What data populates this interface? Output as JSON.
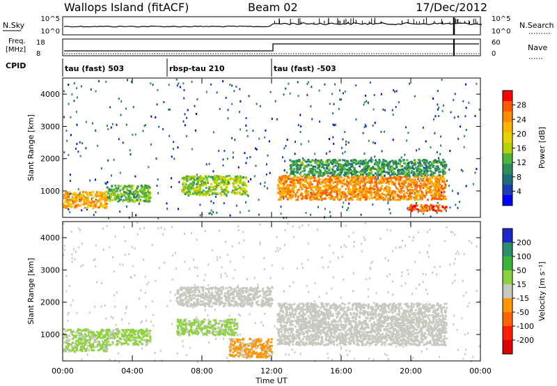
{
  "header": {
    "station": "Wallops Island (fitACF)",
    "beam": "Beam 02",
    "date": "17/Dec/2012"
  },
  "top_panels": {
    "nsky_label": "N.Sky",
    "nsky_ticks": [
      "10^5",
      "10^0"
    ],
    "nsearch_label": "N.Search",
    "nsearch_ticks": [
      "10^5",
      "10^0"
    ],
    "freq_label_1": "Freq.",
    "freq_label_2": "[MHz]",
    "freq_ticks": [
      "18",
      "8"
    ],
    "nave_label": "Nave",
    "nave_ticks": [
      "60",
      "0"
    ],
    "cpid_label": "CPID",
    "cpid_segments": [
      {
        "label": "tau (fast) 503",
        "start": 0,
        "end": 6
      },
      {
        "label": "rbsp-tau 210",
        "start": 6,
        "end": 12
      },
      {
        "label": "tau (fast) -503",
        "start": 12,
        "end": 24
      }
    ]
  },
  "power_colorbar": {
    "title": "Power [dB]",
    "ticks": [
      "28",
      "24",
      "20",
      "16",
      "12",
      "8",
      "4"
    ],
    "colors": [
      "#ff0000",
      "#ff5a00",
      "#ff8c00",
      "#ffb400",
      "#e6d200",
      "#b4d200",
      "#50b43c",
      "#2d8c5a",
      "#1e6e78",
      "#1e3cb4",
      "#0000ff"
    ]
  },
  "velocity_colorbar": {
    "title": "Velocity [m s⁻¹]",
    "ticks": [
      "200",
      "100",
      "50",
      "15",
      "-15",
      "-50",
      "-100",
      "-200"
    ],
    "colors": [
      "#1e28c8",
      "#2d8c6e",
      "#3cb43c",
      "#8cd23c",
      "#c8c8c0",
      "#ff9600",
      "#ff6400",
      "#ff1e00",
      "#dc0000"
    ]
  },
  "chart_data": [
    {
      "type": "heatmap",
      "title": "",
      "xlabel": "Time UT",
      "ylabel": "Slant Range [km]",
      "xlim": [
        0,
        24
      ],
      "ylim": [
        180,
        4500
      ],
      "xticks": [
        "00:00",
        "04:00",
        "08:00",
        "12:00",
        "16:00",
        "20:00",
        "00:00"
      ],
      "yticks": [
        "1000",
        "2000",
        "3000",
        "4000"
      ],
      "colorbar_label": "Power [dB]",
      "colorbar_range": [
        0,
        30
      ],
      "regions": [
        {
          "x": [
            0.0,
            2.5
          ],
          "y": [
            500,
            1000
          ],
          "value": 22
        },
        {
          "x": [
            2.5,
            5.0
          ],
          "y": [
            700,
            1200
          ],
          "value": 12
        },
        {
          "x": [
            6.8,
            10.5
          ],
          "y": [
            900,
            1500
          ],
          "value": 14
        },
        {
          "x": [
            12.3,
            22.0
          ],
          "y": [
            750,
            1500
          ],
          "value": 24
        },
        {
          "x": [
            13.0,
            22.0
          ],
          "y": [
            1500,
            2000
          ],
          "value": 10
        },
        {
          "x": [
            19.8,
            22.0
          ],
          "y": [
            400,
            600
          ],
          "value": 28
        }
      ]
    },
    {
      "type": "heatmap",
      "title": "",
      "xlabel": "Time UT",
      "ylabel": "Slant Range [km]",
      "xlim": [
        0,
        24
      ],
      "ylim": [
        180,
        4500
      ],
      "xticks": [
        "00:00",
        "04:00",
        "08:00",
        "12:00",
        "16:00",
        "20:00",
        "00:00"
      ],
      "yticks": [
        "1000",
        "2000",
        "3000",
        "4000"
      ],
      "colorbar_label": "Velocity [m s⁻¹]",
      "colorbar_range": [
        -250,
        250
      ],
      "regions": [
        {
          "x": [
            0.0,
            2.5
          ],
          "y": [
            500,
            1200
          ],
          "value": 40
        },
        {
          "x": [
            2.5,
            5.0
          ],
          "y": [
            700,
            1200
          ],
          "value": 40
        },
        {
          "x": [
            6.5,
            10.0
          ],
          "y": [
            1000,
            1500
          ],
          "value": 40
        },
        {
          "x": [
            9.5,
            12.0
          ],
          "y": [
            300,
            900
          ],
          "value": -40
        },
        {
          "x": [
            6.5,
            12.0
          ],
          "y": [
            1900,
            2500
          ],
          "value": 0
        },
        {
          "x": [
            12.3,
            22.0
          ],
          "y": [
            700,
            2000
          ],
          "value": 0
        }
      ]
    }
  ]
}
